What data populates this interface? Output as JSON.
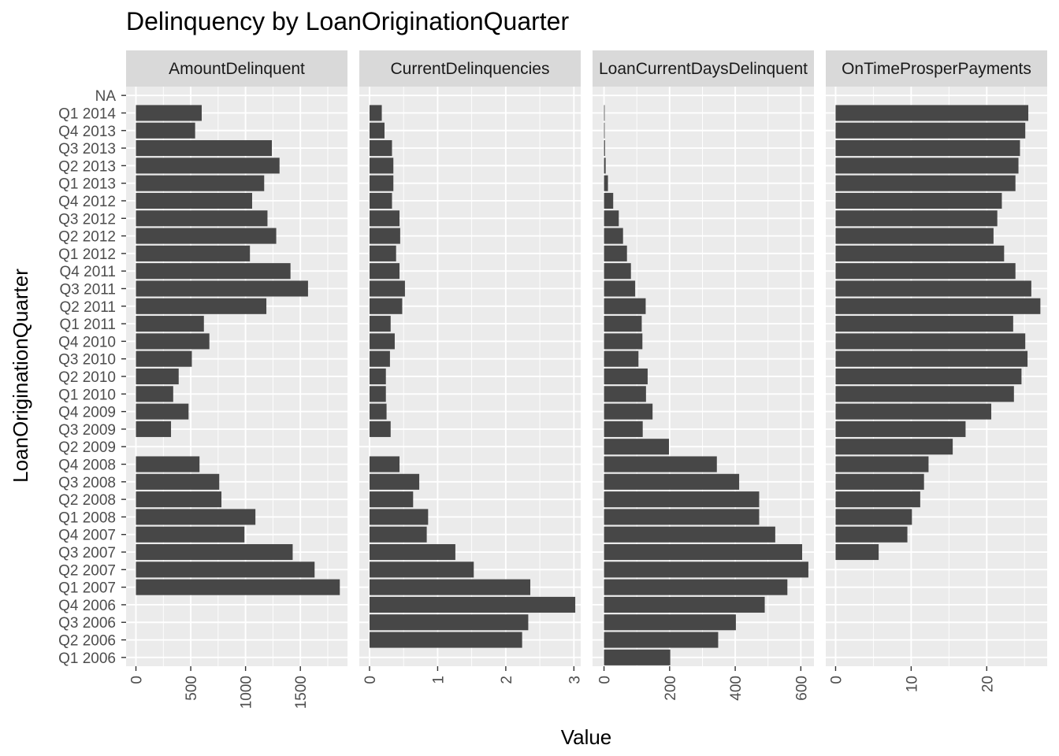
{
  "chart_data": {
    "type": "bar",
    "orientation": "horizontal",
    "title": "Delinquency by LoanOriginationQuarter",
    "xlabel": "Value",
    "ylabel": "LoanOriginationQuarter",
    "grid": true,
    "legend": "none",
    "bar_color": "#474747",
    "panel_color": "#ebebeb",
    "strip_color": "#d9d9d9",
    "categories": [
      "NA",
      "Q1 2014",
      "Q4 2013",
      "Q3 2013",
      "Q2 2013",
      "Q1 2013",
      "Q4 2012",
      "Q3 2012",
      "Q2 2012",
      "Q1 2012",
      "Q4 2011",
      "Q3 2011",
      "Q2 2011",
      "Q1 2011",
      "Q4 2010",
      "Q3 2010",
      "Q2 2010",
      "Q1 2010",
      "Q4 2009",
      "Q3 2009",
      "Q2 2009",
      "Q4 2008",
      "Q3 2008",
      "Q2 2008",
      "Q1 2008",
      "Q4 2007",
      "Q3 2007",
      "Q2 2007",
      "Q1 2007",
      "Q4 2006",
      "Q3 2006",
      "Q2 2006",
      "Q1 2006"
    ],
    "facets": [
      {
        "name": "AmountDelinquent",
        "xlim": [
          -90,
          1930
        ],
        "ticks": [
          0,
          500,
          1000,
          1500
        ],
        "values": [
          null,
          600,
          540,
          1240,
          1310,
          1170,
          1060,
          1200,
          1280,
          1040,
          1410,
          1570,
          1190,
          620,
          670,
          510,
          390,
          340,
          480,
          320,
          null,
          580,
          760,
          780,
          1090,
          990,
          1430,
          1630,
          1860,
          null,
          null,
          null,
          null
        ]
      },
      {
        "name": "CurrentDelinquencies",
        "display_label": "CurrentDelinquencies",
        "xlim": [
          -0.15,
          3.1
        ],
        "ticks": [
          0,
          1,
          2,
          3
        ],
        "values": [
          null,
          0.18,
          0.22,
          0.33,
          0.35,
          0.35,
          0.33,
          0.44,
          0.45,
          0.39,
          0.44,
          0.52,
          0.48,
          0.31,
          0.37,
          0.3,
          0.24,
          0.24,
          0.25,
          0.31,
          null,
          0.44,
          0.73,
          0.64,
          0.86,
          0.84,
          1.26,
          1.53,
          2.36,
          3.02,
          2.33,
          2.24,
          null
        ]
      },
      {
        "name": "LoanCurrentDaysDelinquent",
        "display_label": "LoanCurrentDaysDelinquent",
        "xlim": [
          -35,
          640
        ],
        "ticks": [
          0,
          200,
          400,
          600
        ],
        "values": [
          null,
          0.5,
          1,
          3,
          5,
          12,
          28,
          45,
          58,
          70,
          82,
          95,
          127,
          115,
          117,
          105,
          133,
          128,
          148,
          118,
          198,
          344,
          412,
          473,
          473,
          522,
          604,
          623,
          559,
          490,
          402,
          348,
          202
        ]
      },
      {
        "name": "OnTimeProsperPayments",
        "xlim": [
          -1.3,
          28.0
        ],
        "ticks": [
          0,
          10,
          20
        ],
        "values": [
          null,
          25.5,
          25.1,
          24.4,
          24.2,
          23.8,
          22.0,
          21.4,
          20.9,
          22.3,
          23.8,
          25.9,
          27.1,
          23.5,
          25.1,
          25.4,
          24.6,
          23.6,
          20.6,
          17.2,
          15.5,
          12.3,
          11.7,
          11.2,
          10.1,
          9.5,
          5.7,
          null,
          null,
          null,
          null,
          null,
          null
        ]
      }
    ]
  }
}
